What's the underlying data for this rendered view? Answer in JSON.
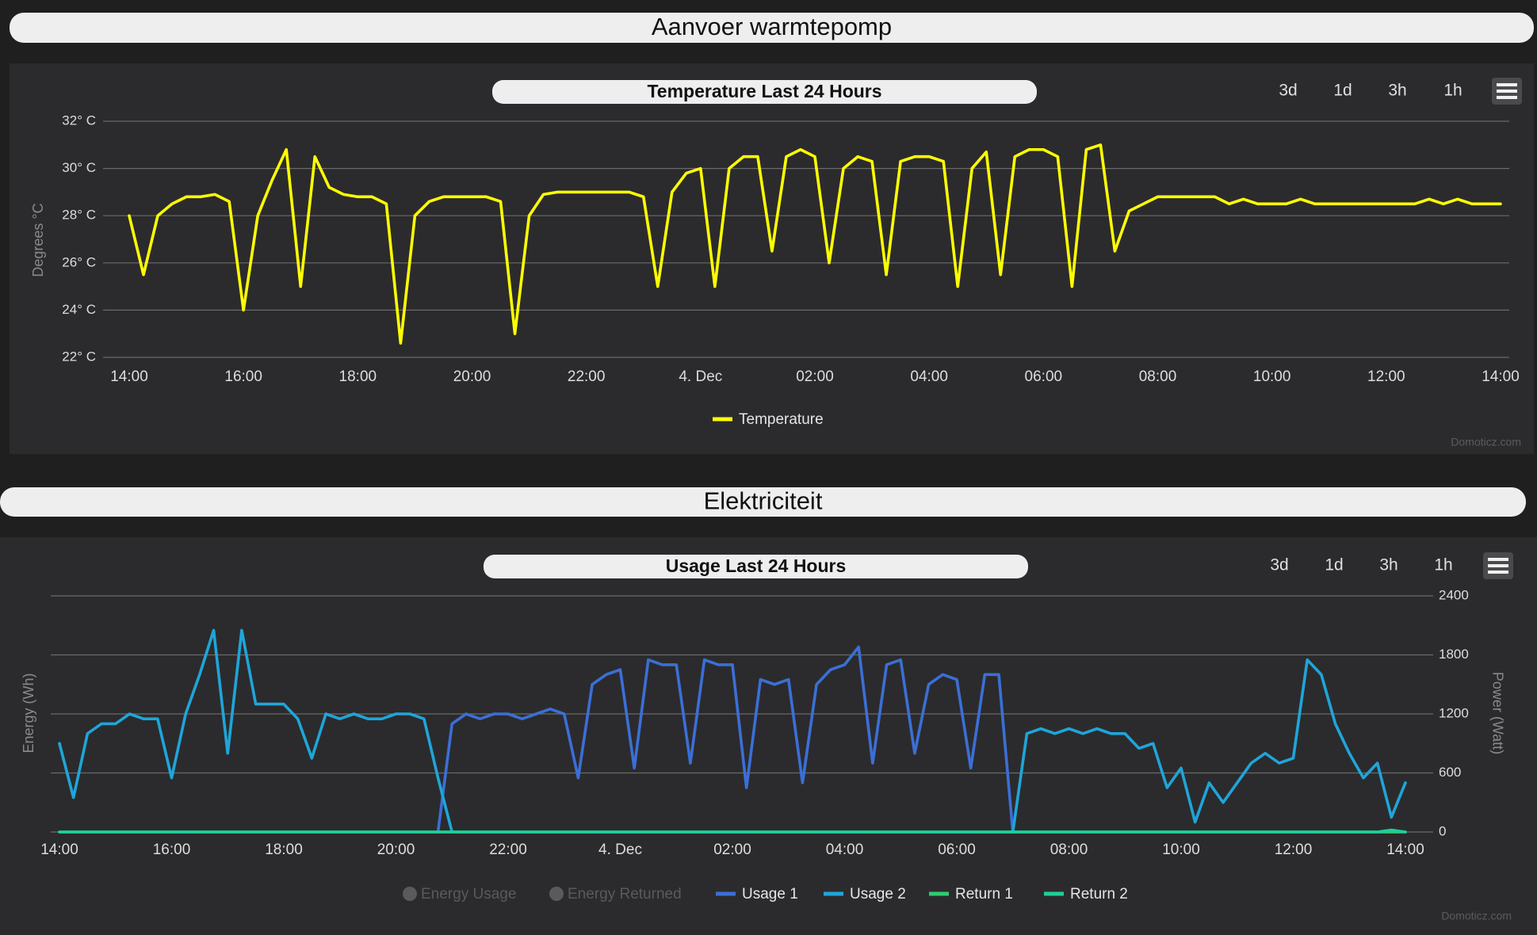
{
  "page": {
    "sections": [
      "Aanvoer warmtepomp",
      "Elektriciteit"
    ],
    "range_buttons": [
      "3d",
      "1d",
      "3h",
      "1h"
    ],
    "credit": "Domoticz.com"
  },
  "chart_data": [
    {
      "type": "line",
      "title": "Temperature Last 24 Hours",
      "ylabel": "Degrees °C",
      "categories": [
        "14:00",
        null,
        null,
        null,
        null,
        null,
        null,
        null,
        "16:00",
        null,
        null,
        null,
        null,
        null,
        null,
        null,
        "18:00",
        null,
        null,
        null,
        null,
        null,
        null,
        null,
        "20:00",
        null,
        null,
        null,
        null,
        null,
        null,
        null,
        "22:00",
        null,
        null,
        null,
        null,
        null,
        null,
        null,
        "4. Dec",
        null,
        null,
        null,
        null,
        null,
        null,
        null,
        "02:00",
        null,
        null,
        null,
        null,
        null,
        null,
        null,
        "04:00",
        null,
        null,
        null,
        null,
        null,
        null,
        null,
        "06:00",
        null,
        null,
        null,
        null,
        null,
        null,
        null,
        "08:00",
        null,
        null,
        null,
        null,
        null,
        null,
        null,
        "10:00",
        null,
        null,
        null,
        null,
        null,
        null,
        null,
        "12:00",
        null,
        null,
        null,
        null,
        null,
        null,
        null,
        "14:00"
      ],
      "ylim": [
        22,
        32
      ],
      "yticks": [
        {
          "value": 22,
          "label": "22° C"
        },
        {
          "value": 24,
          "label": "24° C"
        },
        {
          "value": 26,
          "label": "26° C"
        },
        {
          "value": 28,
          "label": "28° C"
        },
        {
          "value": 30,
          "label": "30° C"
        },
        {
          "value": 32,
          "label": "32° C"
        }
      ],
      "grid": true,
      "series": [
        {
          "name": "Temperature",
          "color": "#ffff00",
          "values": [
            28,
            25.5,
            28,
            28.5,
            28.8,
            28.8,
            28.9,
            28.6,
            24,
            28,
            29.5,
            30.8,
            25,
            30.5,
            29.2,
            28.9,
            28.8,
            28.8,
            28.5,
            22.6,
            28,
            28.6,
            28.8,
            28.8,
            28.8,
            28.8,
            28.6,
            23,
            28,
            28.9,
            29,
            29,
            29,
            29,
            29,
            29,
            28.8,
            25,
            29,
            29.8,
            30,
            25,
            30,
            30.5,
            30.5,
            26.5,
            30.5,
            30.8,
            30.5,
            26,
            30,
            30.5,
            30.3,
            25.5,
            30.3,
            30.5,
            30.5,
            30.3,
            25,
            30,
            30.7,
            25.5,
            30.5,
            30.8,
            30.8,
            30.5,
            25,
            30.8,
            31,
            26.5,
            28.2,
            28.5,
            28.8,
            28.8,
            28.8,
            28.8,
            28.8,
            28.5,
            28.7,
            28.5,
            28.5,
            28.5,
            28.7,
            28.5,
            28.5,
            28.5,
            28.5,
            28.5,
            28.5,
            28.5,
            28.5,
            28.7,
            28.5,
            28.7,
            28.5,
            28.5,
            28.5
          ]
        }
      ]
    },
    {
      "type": "line",
      "title": "Usage Last 24 Hours",
      "ylabel": "Energy (Wh)",
      "y2label": "Power (Watt)",
      "categories": [
        "14:00",
        null,
        null,
        null,
        null,
        null,
        null,
        null,
        "16:00",
        null,
        null,
        null,
        null,
        null,
        null,
        null,
        "18:00",
        null,
        null,
        null,
        null,
        null,
        null,
        null,
        "20:00",
        null,
        null,
        null,
        null,
        null,
        null,
        null,
        "22:00",
        null,
        null,
        null,
        null,
        null,
        null,
        null,
        "4. Dec",
        null,
        null,
        null,
        null,
        null,
        null,
        null,
        "02:00",
        null,
        null,
        null,
        null,
        null,
        null,
        null,
        "04:00",
        null,
        null,
        null,
        null,
        null,
        null,
        null,
        "06:00",
        null,
        null,
        null,
        null,
        null,
        null,
        null,
        "08:00",
        null,
        null,
        null,
        null,
        null,
        null,
        null,
        "10:00",
        null,
        null,
        null,
        null,
        null,
        null,
        null,
        "12:00",
        null,
        null,
        null,
        null,
        null,
        null,
        null,
        "14:00"
      ],
      "y2lim": [
        0,
        2400
      ],
      "y2ticks": [
        0,
        600,
        1200,
        1800,
        2400
      ],
      "grid": true,
      "series": [
        {
          "name": "Energy Usage",
          "color": "#5a5a5a",
          "visible": false
        },
        {
          "name": "Energy Returned",
          "color": "#5a5a5a",
          "visible": false
        },
        {
          "name": "Usage 1",
          "color": "#3b6fd6",
          "axis": "y2",
          "values": [
            0,
            0,
            0,
            0,
            0,
            0,
            0,
            0,
            0,
            0,
            0,
            0,
            0,
            0,
            0,
            0,
            0,
            0,
            0,
            0,
            0,
            0,
            0,
            0,
            0,
            0,
            0,
            0,
            1100,
            1200,
            1150,
            1200,
            1200,
            1150,
            1200,
            1250,
            1200,
            550,
            1500,
            1600,
            1650,
            650,
            1750,
            1700,
            1700,
            700,
            1750,
            1700,
            1700,
            450,
            1550,
            1500,
            1550,
            500,
            1500,
            1650,
            1700,
            1880,
            700,
            1700,
            1750,
            800,
            1500,
            1600,
            1550,
            650,
            1600,
            1600,
            0,
            0,
            0,
            0,
            0,
            0,
            0,
            0,
            0,
            0,
            0,
            0,
            0,
            0,
            0,
            0,
            0,
            0,
            0,
            0,
            0,
            0,
            0,
            0,
            0,
            0,
            0,
            0,
            0
          ]
        },
        {
          "name": "Usage 2",
          "color": "#1fa5d9",
          "axis": "y2",
          "values": [
            900,
            350,
            1000,
            1100,
            1100,
            1200,
            1150,
            1150,
            550,
            1200,
            1600,
            2050,
            800,
            2050,
            1300,
            1300,
            1300,
            1150,
            750,
            1200,
            1150,
            1200,
            1150,
            1150,
            1200,
            1200,
            1150,
            550,
            0,
            0,
            0,
            0,
            0,
            0,
            0,
            0,
            0,
            0,
            0,
            0,
            0,
            0,
            0,
            0,
            0,
            0,
            0,
            0,
            0,
            0,
            0,
            0,
            0,
            0,
            0,
            0,
            0,
            0,
            0,
            0,
            0,
            0,
            0,
            0,
            0,
            0,
            0,
            0,
            0,
            1000,
            1050,
            1000,
            1050,
            1000,
            1050,
            1000,
            1000,
            850,
            900,
            450,
            650,
            100,
            500,
            300,
            500,
            700,
            800,
            700,
            750,
            1750,
            1600,
            1100,
            800,
            550,
            700,
            150,
            500
          ]
        },
        {
          "name": "Return 1",
          "color": "#2ecc71",
          "axis": "y2",
          "values": [
            0,
            0,
            0,
            0,
            0,
            0,
            0,
            0,
            0,
            0,
            0,
            0,
            0,
            0,
            0,
            0,
            0,
            0,
            0,
            0,
            0,
            0,
            0,
            0,
            0,
            0,
            0,
            0,
            0,
            0,
            0,
            0,
            0,
            0,
            0,
            0,
            0,
            0,
            0,
            0,
            0,
            0,
            0,
            0,
            0,
            0,
            0,
            0,
            0,
            0,
            0,
            0,
            0,
            0,
            0,
            0,
            0,
            0,
            0,
            0,
            0,
            0,
            0,
            0,
            0,
            0,
            0,
            0,
            0,
            0,
            0,
            0,
            0,
            0,
            0,
            0,
            0,
            0,
            0,
            0,
            0,
            0,
            0,
            0,
            0,
            0,
            0,
            0,
            0,
            0,
            0,
            0,
            0,
            0,
            0,
            0,
            0
          ]
        },
        {
          "name": "Return 2",
          "color": "#1fcf9a",
          "axis": "y2",
          "values": [
            0,
            0,
            0,
            0,
            0,
            0,
            0,
            0,
            0,
            0,
            0,
            0,
            0,
            0,
            0,
            0,
            0,
            0,
            0,
            0,
            0,
            0,
            0,
            0,
            0,
            0,
            0,
            0,
            0,
            0,
            0,
            0,
            0,
            0,
            0,
            0,
            0,
            0,
            0,
            0,
            0,
            0,
            0,
            0,
            0,
            0,
            0,
            0,
            0,
            0,
            0,
            0,
            0,
            0,
            0,
            0,
            0,
            0,
            0,
            0,
            0,
            0,
            0,
            0,
            0,
            0,
            0,
            0,
            0,
            0,
            0,
            0,
            0,
            0,
            0,
            0,
            0,
            0,
            0,
            0,
            0,
            0,
            0,
            0,
            0,
            0,
            0,
            0,
            0,
            0,
            0,
            0,
            0,
            0,
            0,
            20,
            0
          ]
        }
      ]
    }
  ]
}
